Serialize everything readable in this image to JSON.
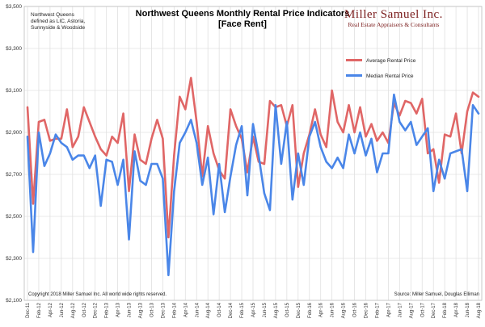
{
  "chart_data": {
    "type": "line",
    "title_line1": "Northwest Queens Monthly Rental Price Indicators",
    "title_line2": "[Face Rent]",
    "note_lines": [
      "Northwest Queens",
      "defined as LIC, Astoria,",
      "Sunnyside & Woodside"
    ],
    "brand_name": "Miller Samuel Inc.",
    "brand_subtitle": "Real Estate Appraisers & Consultants",
    "copyright": "Copyright 2018 Miller Samuel Inc. All world wide rights reserved.",
    "source": "Source: Miller Samuel, Douglas Elliman",
    "ylim": [
      2100,
      3500
    ],
    "yticks": [
      2100,
      2300,
      2500,
      2700,
      2900,
      3100,
      3300,
      3500
    ],
    "ytick_labels": [
      "$2,100",
      "$2,300",
      "$2,500",
      "$2,700",
      "$2,900",
      "$3,100",
      "$3,300",
      "$3,500"
    ],
    "grid": true,
    "legend_position": "top-right",
    "x": [
      "Dec-11",
      "Jan-12",
      "Feb-12",
      "Mar-12",
      "Apr-12",
      "May-12",
      "Jun-12",
      "Jul-12",
      "Aug-12",
      "Sep-12",
      "Oct-12",
      "Nov-12",
      "Dec-12",
      "Jan-13",
      "Feb-13",
      "Mar-13",
      "Apr-13",
      "May-13",
      "Jun-13",
      "Jul-13",
      "Aug-13",
      "Sep-13",
      "Oct-13",
      "Nov-13",
      "Dec-13",
      "Jan-14",
      "Feb-14",
      "Mar-14",
      "Apr-14",
      "May-14",
      "Jun-14",
      "Jul-14",
      "Aug-14",
      "Sep-14",
      "Oct-14",
      "Nov-14",
      "Dec-14",
      "Jan-15",
      "Feb-15",
      "Mar-15",
      "Apr-15",
      "May-15",
      "Jun-15",
      "Jul-15",
      "Aug-15",
      "Sep-15",
      "Oct-15",
      "Nov-15",
      "Dec-15",
      "Jan-16",
      "Feb-16",
      "Mar-16",
      "Apr-16",
      "May-16",
      "Jun-16",
      "Jul-16",
      "Aug-16",
      "Sep-16",
      "Oct-16",
      "Nov-16",
      "Dec-16",
      "Jan-17",
      "Feb-17",
      "Mar-17",
      "Apr-17",
      "May-17",
      "Jun-17",
      "Jul-17",
      "Aug-17",
      "Sep-17",
      "Oct-17",
      "Nov-17",
      "Dec-17",
      "Jan-18",
      "Feb-18",
      "Mar-18",
      "Apr-18",
      "May-18",
      "Jun-18",
      "Jul-18",
      "Aug-18"
    ],
    "x_tick_labels": [
      "Dec-11",
      "Feb-12",
      "Apr-12",
      "Jun-12",
      "Aug-12",
      "Oct-12",
      "Dec-12",
      "Feb-13",
      "Apr-13",
      "Jun-13",
      "Aug-13",
      "Oct-13",
      "Dec-13",
      "Feb-14",
      "Apr-14",
      "Jun-14",
      "Aug-14",
      "Oct-14",
      "Dec-14",
      "Feb-15",
      "Apr-15",
      "Jun-15",
      "Aug-15",
      "Oct-15",
      "Dec-15",
      "Feb-16",
      "Apr-16",
      "Jun-16",
      "Aug-16",
      "Oct-16",
      "Dec-16",
      "Feb-17",
      "Apr-17",
      "Jun-17",
      "Aug-17",
      "Oct-17",
      "Dec-17",
      "Feb-18",
      "Apr-18",
      "Jun-18",
      "Aug-18"
    ],
    "series": [
      {
        "name": "Average Rental Price",
        "color": "#e06666",
        "values": [
          3020,
          2560,
          2950,
          2960,
          2860,
          2870,
          2870,
          3010,
          2830,
          2880,
          3020,
          2950,
          2880,
          2820,
          2790,
          2880,
          2850,
          2990,
          2620,
          2890,
          2770,
          2750,
          2870,
          2960,
          2870,
          2400,
          2790,
          3070,
          3010,
          3160,
          2950,
          2690,
          2930,
          2800,
          2720,
          2680,
          3010,
          2930,
          2870,
          2710,
          2880,
          2760,
          2750,
          3050,
          3020,
          3030,
          2930,
          3030,
          2640,
          2800,
          2890,
          3010,
          2890,
          2830,
          3100,
          2950,
          2900,
          3030,
          2900,
          3020,
          2880,
          2940,
          2860,
          2900,
          2850,
          3040,
          2980,
          3050,
          3040,
          2990,
          3060,
          2800,
          2820,
          2660,
          2890,
          2880,
          2990,
          2800,
          3000,
          3090,
          3070
        ]
      },
      {
        "name": "Median Rental Price",
        "color": "#4a86e8",
        "values": [
          2880,
          2330,
          2900,
          2740,
          2800,
          2890,
          2850,
          2830,
          2770,
          2790,
          2790,
          2730,
          2790,
          2550,
          2770,
          2760,
          2650,
          2770,
          2390,
          2810,
          2670,
          2650,
          2750,
          2750,
          2680,
          2220,
          2620,
          2850,
          2900,
          2960,
          2850,
          2650,
          2780,
          2510,
          2750,
          2520,
          2690,
          2840,
          2930,
          2600,
          2940,
          2790,
          2610,
          2530,
          3030,
          2750,
          2950,
          2580,
          2800,
          2650,
          2880,
          2950,
          2830,
          2760,
          2730,
          2780,
          2730,
          2890,
          2800,
          2900,
          2790,
          2870,
          2710,
          2800,
          2800,
          3080,
          2950,
          2910,
          2950,
          2840,
          2880,
          2920,
          2620,
          2770,
          2680,
          2800,
          2810,
          2820,
          2620,
          3030,
          2990
        ]
      }
    ]
  }
}
